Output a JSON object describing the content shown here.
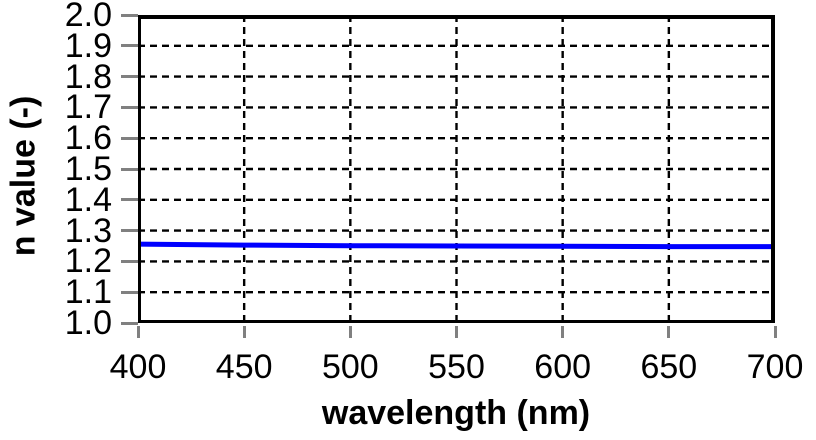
{
  "figure": {
    "background": "#FFFFFF"
  },
  "chart_data": {
    "type": "line",
    "title": "",
    "xlabel": "wavelength (nm)",
    "ylabel": "n value (-)",
    "xlim": [
      400,
      700
    ],
    "ylim": [
      1.0,
      2.0
    ],
    "x_ticks": [
      "400",
      "450",
      "500",
      "550",
      "600",
      "650",
      "700"
    ],
    "y_ticks": [
      "1.0",
      "1.1",
      "1.2",
      "1.3",
      "1.4",
      "1.5",
      "1.6",
      "1.7",
      "1.8",
      "1.9",
      "2.0"
    ],
    "grid": "dashed black grid on both axes",
    "legend": "none",
    "series": [
      {
        "name": "n value",
        "color": "#0000FF",
        "line_width": 5,
        "x": [
          400,
          450,
          500,
          550,
          600,
          650,
          700
        ],
        "values": [
          1.256,
          1.253,
          1.251,
          1.25,
          1.249,
          1.248,
          1.248
        ]
      }
    ],
    "styles": {
      "grid_color": "#000000",
      "frame_color": "#000000",
      "tick_mark_color": "#808080",
      "text_color": "#000000"
    }
  }
}
